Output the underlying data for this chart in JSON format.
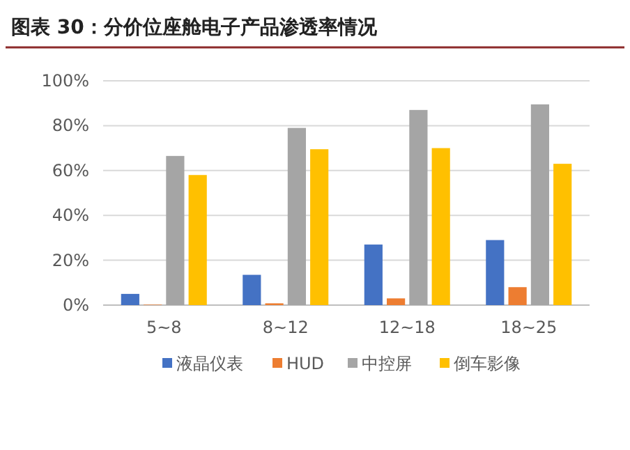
{
  "chart_data": {
    "type": "bar",
    "title": "图表 30：分价位座舱电子产品渗透率情况",
    "categories": [
      "5~8",
      "8~12",
      "12~18",
      "18~25"
    ],
    "series": [
      {
        "name": "液晶仪表",
        "color": "#4472c4",
        "values": [
          5,
          13.5,
          27,
          29
        ]
      },
      {
        "name": "HUD",
        "color": "#ed7d31",
        "values": [
          0.2,
          0.8,
          3,
          8
        ]
      },
      {
        "name": "中控屏",
        "color": "#a5a5a5",
        "values": [
          66.5,
          79,
          87,
          89.5
        ]
      },
      {
        "name": "倒车影像",
        "color": "#ffc000",
        "values": [
          58,
          69.5,
          70,
          63
        ]
      }
    ],
    "ylim": [
      0,
      100
    ],
    "yticks": [
      {
        "value": 0,
        "label": "0%"
      },
      {
        "value": 20,
        "label": "20%"
      },
      {
        "value": 40,
        "label": "40%"
      },
      {
        "value": 60,
        "label": "60%"
      },
      {
        "value": 80,
        "label": "80%"
      },
      {
        "value": 100,
        "label": "100%"
      }
    ],
    "grid": "y",
    "legend": "bottom"
  }
}
